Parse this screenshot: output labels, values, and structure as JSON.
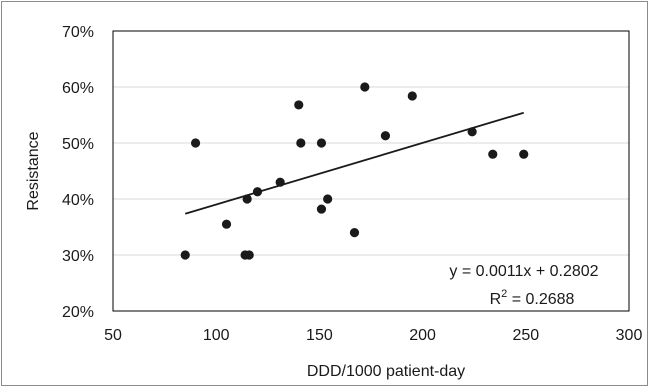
{
  "chart_data": {
    "type": "scatter",
    "title": "",
    "xlabel": "DDD/1000 patient-day",
    "ylabel": "Resistance",
    "xlim": [
      50,
      300
    ],
    "ylim": [
      0.2,
      0.7
    ],
    "x_ticks": [
      50,
      100,
      150,
      200,
      250,
      300
    ],
    "y_ticks": [
      0.2,
      0.3,
      0.4,
      0.5,
      0.6,
      0.7
    ],
    "x_tick_labels": [
      "50",
      "100",
      "150",
      "200",
      "250",
      "300"
    ],
    "y_tick_labels": [
      "20%",
      "30%",
      "40%",
      "50%",
      "60%",
      "70%"
    ],
    "grid": "horizontal",
    "legend": "none",
    "colors": {
      "points": "#1a1a1a",
      "trendline": "#1a1a1a",
      "grid": "#d9d9d9",
      "frame": "#8c8c8c"
    },
    "points": [
      {
        "x": 85,
        "y": 0.3
      },
      {
        "x": 90,
        "y": 0.5
      },
      {
        "x": 105,
        "y": 0.355
      },
      {
        "x": 114,
        "y": 0.3
      },
      {
        "x": 116,
        "y": 0.3
      },
      {
        "x": 115,
        "y": 0.4
      },
      {
        "x": 120,
        "y": 0.413
      },
      {
        "x": 131,
        "y": 0.43
      },
      {
        "x": 140,
        "y": 0.568
      },
      {
        "x": 141,
        "y": 0.5
      },
      {
        "x": 151,
        "y": 0.5
      },
      {
        "x": 151,
        "y": 0.382
      },
      {
        "x": 154,
        "y": 0.4
      },
      {
        "x": 167,
        "y": 0.34
      },
      {
        "x": 172,
        "y": 0.6
      },
      {
        "x": 182,
        "y": 0.513
      },
      {
        "x": 195,
        "y": 0.584
      },
      {
        "x": 224,
        "y": 0.52
      },
      {
        "x": 234,
        "y": 0.48
      },
      {
        "x": 249,
        "y": 0.48
      }
    ],
    "trendline": {
      "slope": 0.0011,
      "intercept": 0.2802,
      "x_range": [
        85,
        249
      ],
      "equation_label": "y = 0.0011x + 0.2802",
      "r2_prefix": "R",
      "r2_exponent": "2",
      "r2_value": " = 0.2688"
    }
  }
}
